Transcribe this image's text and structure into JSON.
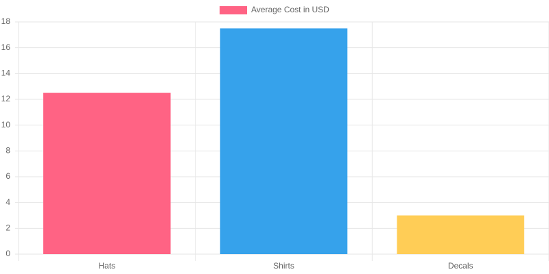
{
  "chart_data": {
    "type": "bar",
    "categories": [
      "Hats",
      "Shirts",
      "Decals"
    ],
    "series": [
      {
        "name": "Average Cost in USD",
        "values": [
          12.5,
          17.5,
          3
        ],
        "colors": [
          "#ff6384",
          "#36a2eb",
          "#ffcd56"
        ]
      }
    ],
    "ylim": [
      0,
      18
    ],
    "yticks": [
      0,
      2,
      4,
      6,
      8,
      10,
      12,
      14,
      16,
      18
    ],
    "grid": true,
    "legend": "top"
  }
}
